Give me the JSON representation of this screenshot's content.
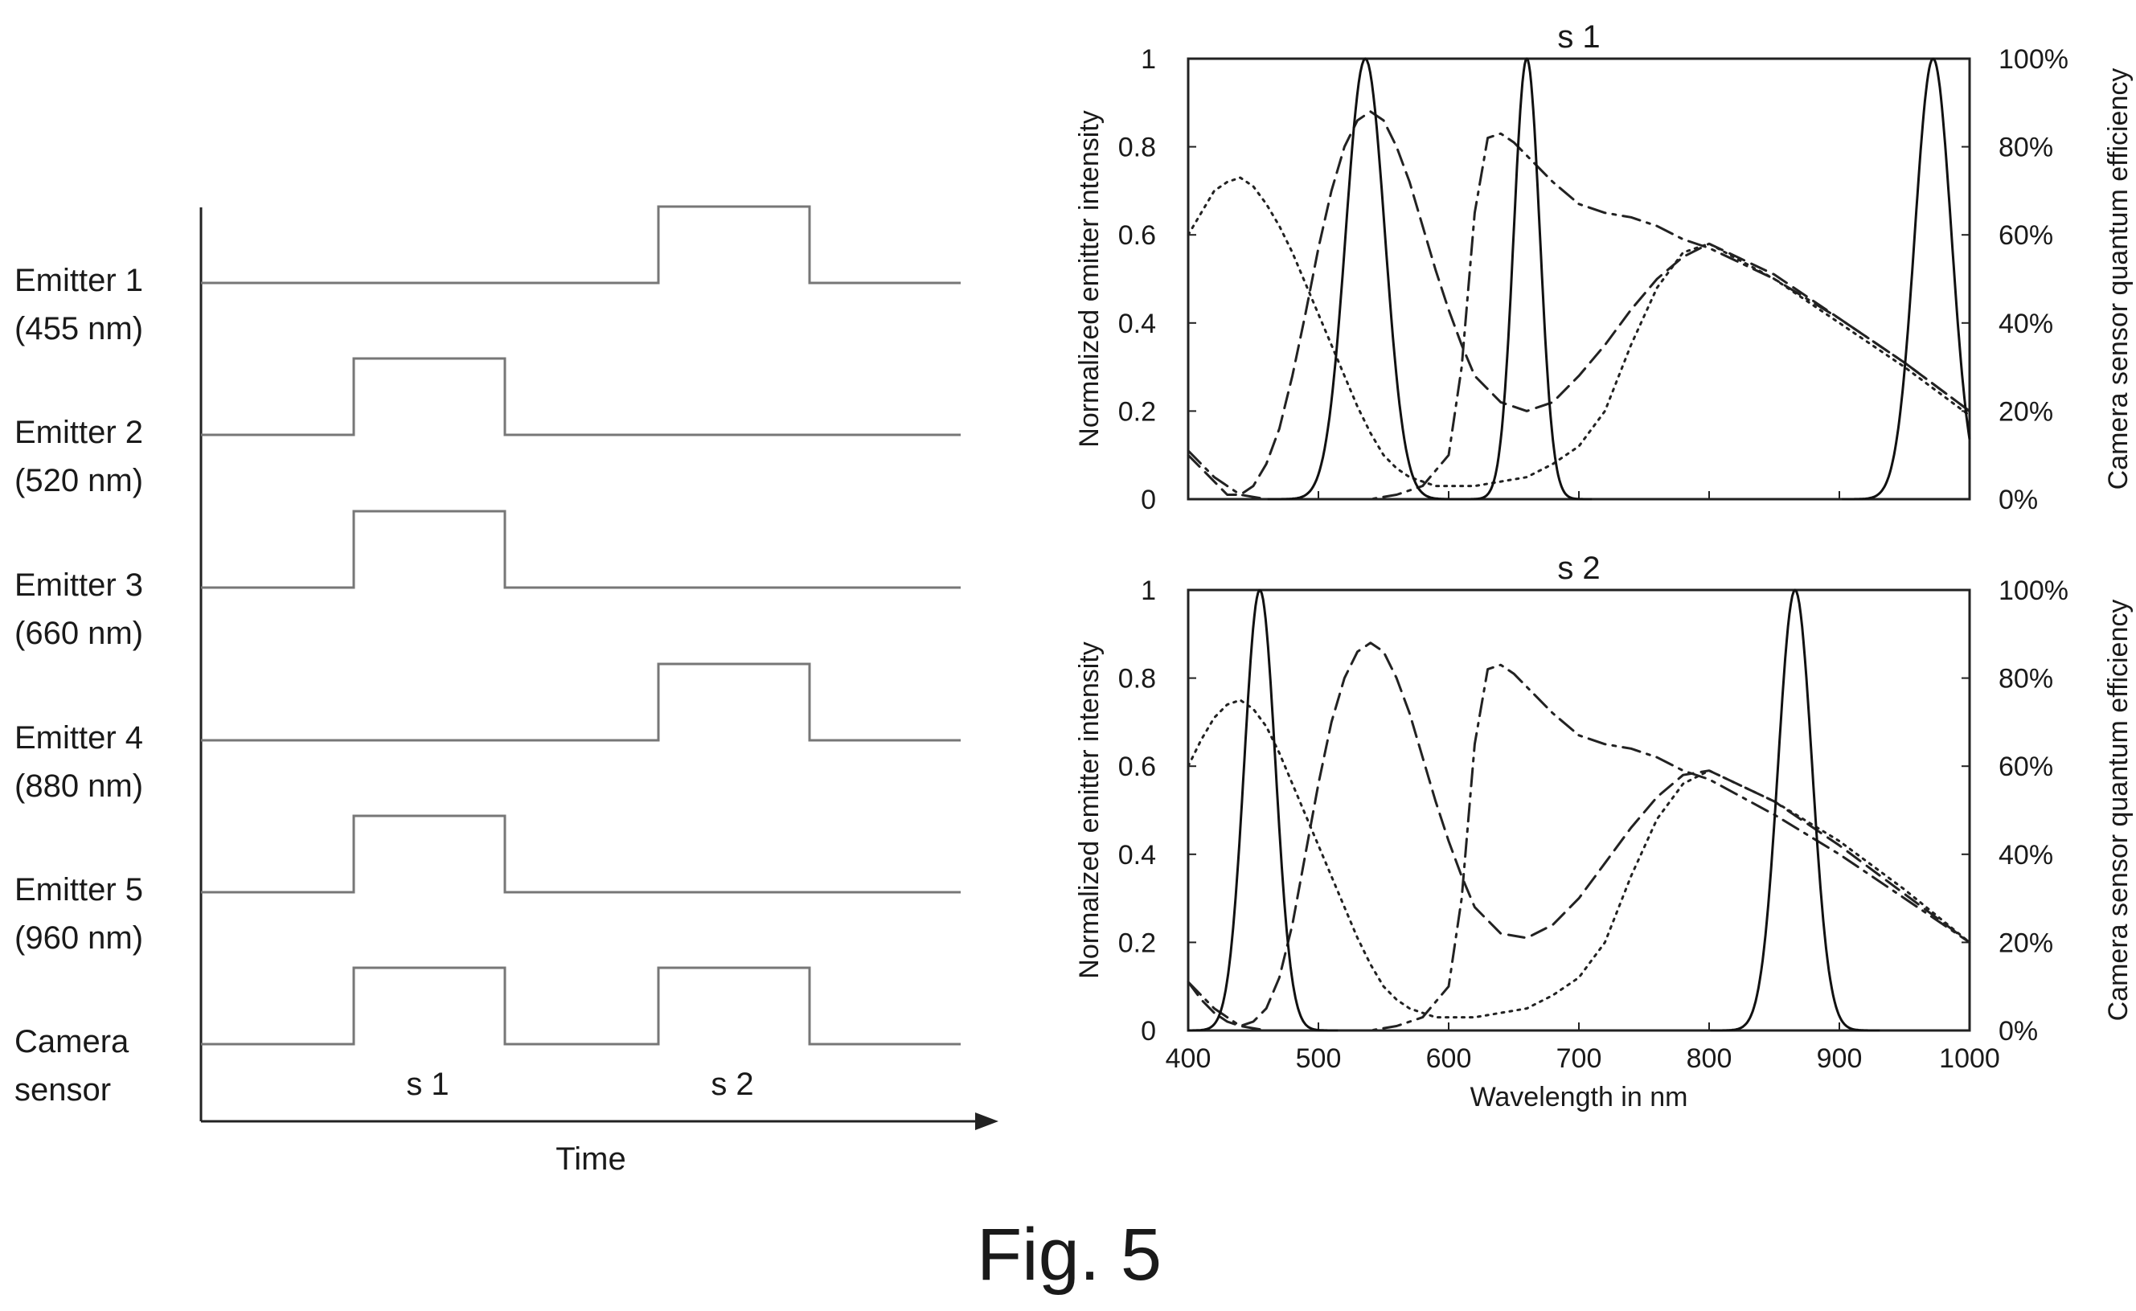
{
  "timing_diagram": {
    "rows": [
      {
        "line1": "Emitter 1",
        "line2": "(455 nm)",
        "pulses": [
          "s 2"
        ]
      },
      {
        "line1": "Emitter 2",
        "line2": "(520 nm)",
        "pulses": [
          "s 1"
        ]
      },
      {
        "line1": "Emitter 3",
        "line2": "(660 nm)",
        "pulses": [
          "s 1"
        ]
      },
      {
        "line1": "Emitter 4",
        "line2": "(880 nm)",
        "pulses": [
          "s 2"
        ]
      },
      {
        "line1": "Emitter 5",
        "line2": "(960 nm)",
        "pulses": [
          "s 1"
        ]
      },
      {
        "line1": "Camera",
        "line2": "sensor",
        "pulses": [
          "s 1",
          "s 2"
        ]
      }
    ],
    "slots": [
      "s 1",
      "s 2"
    ],
    "xlabel": "Time"
  },
  "figure_label": "Fig. 5",
  "chart_data": [
    {
      "type": "line",
      "title": "s 1",
      "xlabel": "",
      "ylabel": "Normalized emitter intensity",
      "y2label": "Camera sensor quantum efficiency",
      "xlim": [
        400,
        1000
      ],
      "ylim": [
        0,
        1
      ],
      "y2lim": [
        0,
        100
      ],
      "xticks": [
        "400",
        "500",
        "600",
        "700",
        "800",
        "900",
        "1000"
      ],
      "yticks": [
        "0",
        "0.2",
        "0.4",
        "0.6",
        "0.8",
        "1"
      ],
      "y2ticks": [
        "0%",
        "20%",
        "40%",
        "60%",
        "80%",
        "100%"
      ],
      "grid": false,
      "emitter_peaks": [
        {
          "center": 536,
          "width": 15,
          "peak": 1.0
        },
        {
          "center": 660,
          "width": 10,
          "peak": 1.0
        },
        {
          "center": 972,
          "width": 14,
          "peak": 1.0
        }
      ],
      "sensor_curves": [
        {
          "style": "dotted",
          "x": [
            400,
            410,
            420,
            430,
            440,
            450,
            460,
            470,
            480,
            490,
            500,
            510,
            520,
            530,
            540,
            550,
            560,
            570,
            580,
            590,
            600,
            620,
            640,
            660,
            680,
            700,
            720,
            740,
            760,
            780,
            800,
            850,
            900,
            950,
            1000
          ],
          "y": [
            60,
            65,
            70,
            72,
            73,
            71,
            67,
            62,
            56,
            49,
            42,
            35,
            28,
            21,
            15,
            10,
            7,
            5,
            4,
            3,
            3,
            3,
            4,
            5,
            8,
            12,
            20,
            35,
            48,
            56,
            58,
            50,
            40,
            30,
            19
          ]
        },
        {
          "style": "dashed",
          "x": [
            400,
            410,
            420,
            430,
            440,
            450,
            460,
            470,
            480,
            490,
            500,
            510,
            520,
            530,
            540,
            550,
            560,
            570,
            580,
            590,
            600,
            610,
            620,
            640,
            660,
            680,
            700,
            720,
            740,
            760,
            780,
            800,
            850,
            900,
            950,
            1000
          ],
          "y": [
            10,
            7,
            4,
            1,
            1,
            3,
            8,
            16,
            28,
            42,
            57,
            70,
            80,
            86,
            88,
            86,
            80,
            72,
            62,
            52,
            43,
            35,
            28,
            22,
            20,
            22,
            28,
            35,
            43,
            50,
            55,
            58,
            51,
            41,
            31,
            20
          ]
        },
        {
          "style": "dashdot",
          "x": [
            400,
            420,
            440,
            460,
            480,
            500,
            520,
            540,
            560,
            580,
            600,
            610,
            620,
            630,
            640,
            650,
            660,
            680,
            700,
            720,
            740,
            760,
            780,
            800,
            850,
            900,
            950,
            1000
          ],
          "y": [
            11,
            5,
            1,
            0,
            0,
            0,
            0,
            0,
            1,
            3,
            10,
            30,
            65,
            82,
            83,
            81,
            78,
            72,
            67,
            65,
            64,
            62,
            59,
            57,
            50,
            41,
            31,
            20
          ]
        }
      ]
    },
    {
      "type": "line",
      "title": "s 2",
      "xlabel": "Wavelength in nm",
      "ylabel": "Normalized emitter intensity",
      "y2label": "Camera sensor quantum efficiency",
      "xlim": [
        400,
        1000
      ],
      "ylim": [
        0,
        1
      ],
      "y2lim": [
        0,
        100
      ],
      "xticks": [
        "400",
        "500",
        "600",
        "700",
        "800",
        "900",
        "1000"
      ],
      "yticks": [
        "0",
        "0.2",
        "0.4",
        "0.6",
        "0.8",
        "1"
      ],
      "y2ticks": [
        "0%",
        "20%",
        "40%",
        "60%",
        "80%",
        "100%"
      ],
      "grid": false,
      "emitter_peaks": [
        {
          "center": 455,
          "width": 12,
          "peak": 1.0
        },
        {
          "center": 866,
          "width": 13,
          "peak": 1.0
        }
      ],
      "sensor_curves": [
        {
          "style": "dotted",
          "x": [
            400,
            410,
            420,
            430,
            440,
            450,
            460,
            470,
            480,
            490,
            500,
            510,
            520,
            530,
            540,
            550,
            560,
            570,
            580,
            590,
            600,
            620,
            640,
            660,
            680,
            700,
            720,
            740,
            760,
            780,
            800,
            850,
            900,
            950,
            1000
          ],
          "y": [
            60,
            66,
            71,
            74,
            75,
            73,
            69,
            63,
            56,
            49,
            42,
            35,
            28,
            21,
            15,
            10,
            7,
            5,
            4,
            3,
            3,
            3,
            4,
            5,
            8,
            12,
            20,
            35,
            48,
            56,
            59,
            52,
            43,
            32,
            20
          ]
        },
        {
          "style": "dashed",
          "x": [
            400,
            410,
            420,
            430,
            440,
            450,
            460,
            470,
            480,
            490,
            500,
            510,
            520,
            530,
            540,
            550,
            560,
            570,
            580,
            590,
            600,
            610,
            620,
            640,
            660,
            680,
            700,
            720,
            740,
            760,
            780,
            800,
            850,
            900,
            950,
            1000
          ],
          "y": [
            11,
            7,
            4,
            2,
            1,
            2,
            5,
            12,
            24,
            40,
            56,
            70,
            80,
            86,
            88,
            86,
            80,
            72,
            62,
            52,
            43,
            35,
            28,
            22,
            21,
            24,
            30,
            38,
            46,
            53,
            58,
            59,
            52,
            42,
            31,
            20
          ]
        },
        {
          "style": "dashdot",
          "x": [
            400,
            420,
            440,
            460,
            480,
            500,
            520,
            540,
            560,
            580,
            600,
            610,
            620,
            630,
            640,
            650,
            660,
            680,
            700,
            720,
            740,
            760,
            780,
            800,
            850,
            900,
            950,
            1000
          ],
          "y": [
            11,
            5,
            1,
            0,
            0,
            0,
            0,
            0,
            1,
            3,
            10,
            30,
            65,
            82,
            83,
            81,
            78,
            72,
            67,
            65,
            64,
            62,
            59,
            57,
            49,
            40,
            30,
            20
          ]
        }
      ]
    }
  ]
}
